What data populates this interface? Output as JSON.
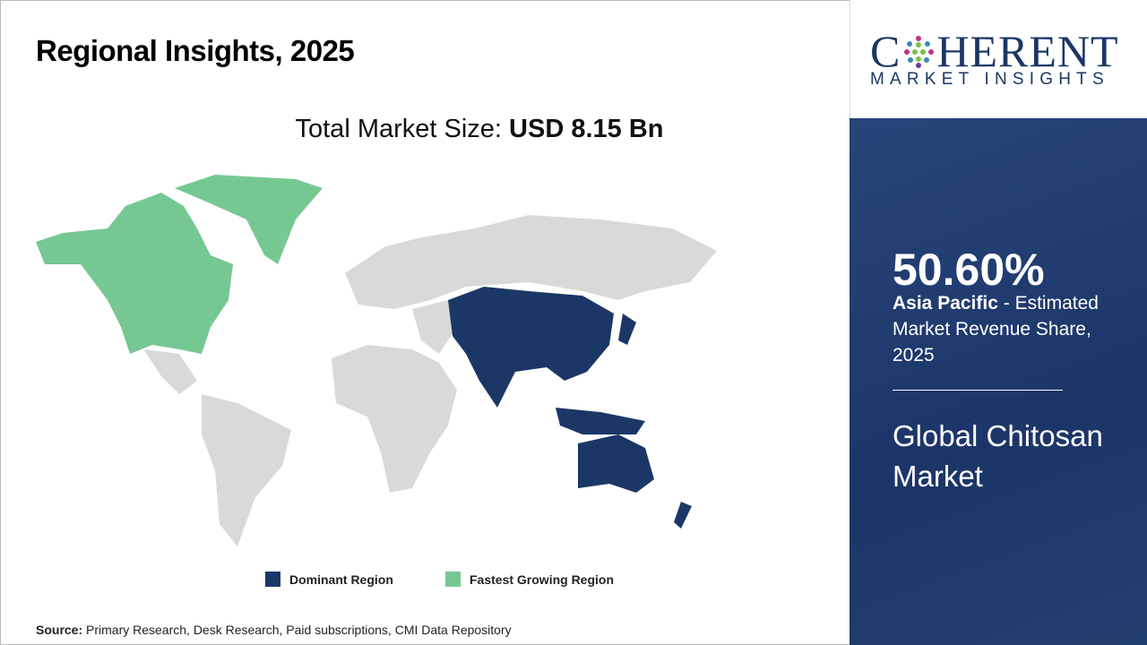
{
  "header": {
    "title": "Regional Insights, 2025"
  },
  "market_size": {
    "label": "Total Market Size:",
    "value": "USD 8.15 Bn"
  },
  "legend": [
    {
      "label": "Dominant Region",
      "color": "#1b3766"
    },
    {
      "label": "Fastest Growing Region",
      "color": "#76c893"
    }
  ],
  "source": {
    "label": "Source:",
    "text": "Primary Research, Desk Research, Paid subscriptions, CMI Data Repository"
  },
  "logo": {
    "top": "COHERENT",
    "bottom": "MARKET INSIGHTS"
  },
  "panel": {
    "percent": "50.60%",
    "region": "Asia Pacific",
    "desc": " - Estimated Market Revenue Share, 2025",
    "market": "Global Chitosan Market"
  },
  "map": {
    "dominant": "Asia Pacific",
    "fastest_growing": "North America",
    "other_color": "#d9d9d9"
  }
}
